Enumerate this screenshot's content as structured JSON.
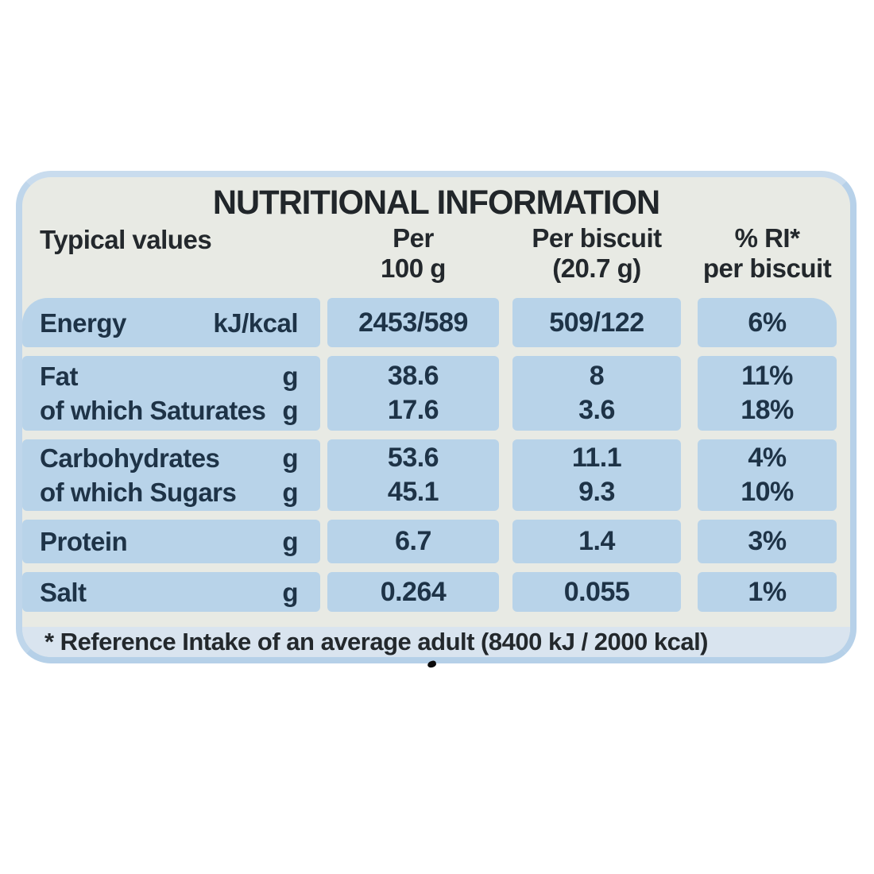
{
  "label": {
    "title": "NUTRITIONAL INFORMATION",
    "header": {
      "typical_values": "Typical values",
      "per_100g": {
        "line1": "Per",
        "line2": "100 g"
      },
      "per_biscuit": {
        "line1": "Per biscuit",
        "line2": "(20.7 g)"
      },
      "ri": {
        "line1": "% RI*",
        "line2": "per biscuit"
      }
    },
    "rows": [
      {
        "lines": [
          {
            "name": "Energy",
            "unit": "kJ/kcal",
            "per100": "2453/589",
            "per_biscuit": "509/122",
            "ri": "6%"
          }
        ]
      },
      {
        "lines": [
          {
            "name": "Fat",
            "unit": "g",
            "per100": "38.6",
            "per_biscuit": "8",
            "ri": "11%"
          },
          {
            "name": "of which Saturates",
            "unit": "g",
            "per100": "17.6",
            "per_biscuit": "3.6",
            "ri": "18%"
          }
        ]
      },
      {
        "lines": [
          {
            "name": "Carbohydrates",
            "unit": "g",
            "per100": "53.6",
            "per_biscuit": "11.1",
            "ri": "4%"
          },
          {
            "name": "of which Sugars",
            "unit": "g",
            "per100": "45.1",
            "per_biscuit": "9.3",
            "ri": "10%"
          }
        ]
      },
      {
        "lines": [
          {
            "name": "Protein",
            "unit": "g",
            "per100": "6.7",
            "per_biscuit": "1.4",
            "ri": "3%"
          }
        ]
      },
      {
        "lines": [
          {
            "name": "Salt",
            "unit": "g",
            "per100": "0.264",
            "per_biscuit": "0.055",
            "ri": "1%"
          }
        ]
      }
    ],
    "footnote": "* Reference Intake of an average adult (8400 kJ / 2000 kcal)",
    "colors": {
      "cell_blue": "#b8d3e9",
      "edge_blue": "#bfd6eb",
      "footnote_band": "#d9e4ef",
      "label_background": "#e8eae4",
      "table_text": "#1e3347"
    }
  }
}
